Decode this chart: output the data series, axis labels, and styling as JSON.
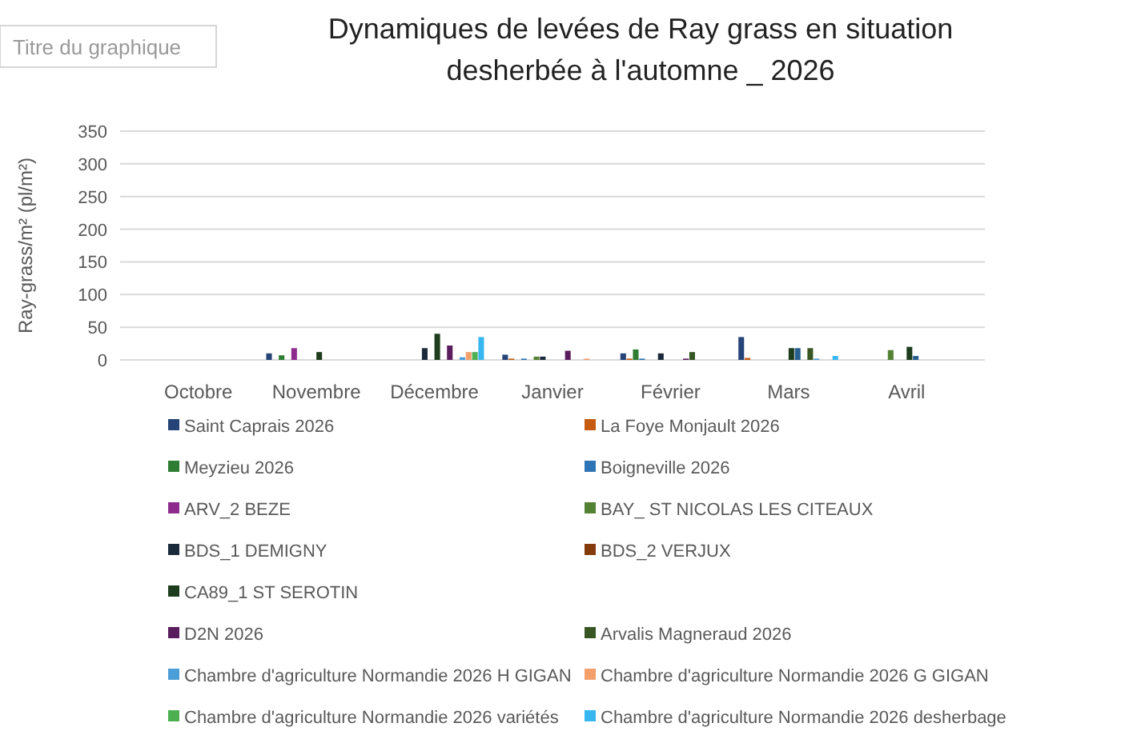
{
  "chart_data": {
    "type": "bar",
    "title": "Dynamiques de levées de Ray grass en situation desherbée à l'automne _ 2026",
    "ylabel": "Ray-grass/m² (pl/m²)",
    "annotations": [
      "Titre du graphique"
    ],
    "categories": [
      "Octobre",
      "Novembre",
      "Décembre",
      "Janvier",
      "Février",
      "Mars",
      "Avril"
    ],
    "ylim": [
      0,
      350
    ],
    "yticks": [
      0,
      50,
      100,
      150,
      200,
      250,
      300,
      350
    ],
    "grid": "y",
    "legend": "bottom",
    "series": [
      {
        "name": "Saint Caprais 2026",
        "color": "#264478",
        "values": [
          null,
          10,
          null,
          8,
          10,
          35,
          null
        ]
      },
      {
        "name": "La Foye Monjault 2026",
        "color": "#c55a11",
        "values": [
          null,
          null,
          null,
          2,
          2,
          3,
          null
        ]
      },
      {
        "name": "Meyzieu 2026",
        "color": "#2e7d32",
        "values": [
          null,
          7,
          null,
          null,
          16,
          null,
          null
        ]
      },
      {
        "name": "Boigneville 2026",
        "color": "#2e75b6",
        "values": [
          null,
          null,
          null,
          2,
          2,
          null,
          null
        ]
      },
      {
        "name": "ARV_2 BEZE",
        "color": "#8e2c8e",
        "values": [
          null,
          18,
          null,
          null,
          null,
          null,
          null
        ]
      },
      {
        "name": "BAY_ ST NICOLAS LES CITEAUX",
        "color": "#548235",
        "values": [
          null,
          null,
          null,
          5,
          null,
          null,
          15
        ]
      },
      {
        "name": "BDS_1 DEMIGNY",
        "color": "#1b2a3a",
        "values": [
          null,
          null,
          18,
          5,
          10,
          null,
          null
        ]
      },
      {
        "name": "BDS_2 VERJUX",
        "color": "#843c0c",
        "values": [
          null,
          null,
          null,
          null,
          null,
          null,
          null
        ]
      },
      {
        "name": "CA89_1 ST SEROTIN",
        "color": "#1e3d1e",
        "values": [
          null,
          12,
          40,
          null,
          null,
          18,
          20
        ]
      },
      {
        "color": "#255e91",
        "values": [
          null,
          null,
          null,
          null,
          null,
          18,
          6
        ]
      },
      {
        "name": "D2N 2026",
        "color": "#5a1d5e",
        "values": [
          null,
          null,
          22,
          14,
          2,
          null,
          null
        ]
      },
      {
        "name": "Arvalis Magneraud 2026",
        "color": "#375623",
        "values": [
          null,
          null,
          null,
          null,
          12,
          18,
          null
        ]
      },
      {
        "name": "Chambre d'agriculture Normandie 2026 H GIGAN",
        "color": "#4a9fd8",
        "values": [
          null,
          null,
          4,
          null,
          null,
          2,
          null
        ]
      },
      {
        "name": "Chambre d'agriculture Normandie 2026 G GIGAN",
        "color": "#f4a06b",
        "values": [
          null,
          null,
          12,
          2,
          null,
          null,
          null
        ]
      },
      {
        "name": "Chambre d'agriculture Normandie 2026 variétés",
        "color": "#4caf50",
        "values": [
          null,
          null,
          12,
          null,
          null,
          null,
          null
        ]
      },
      {
        "name": "Chambre d'agriculture Normandie 2026 desherbage",
        "color": "#38b6f0",
        "values": [
          null,
          null,
          35,
          null,
          null,
          6,
          null
        ]
      }
    ]
  }
}
